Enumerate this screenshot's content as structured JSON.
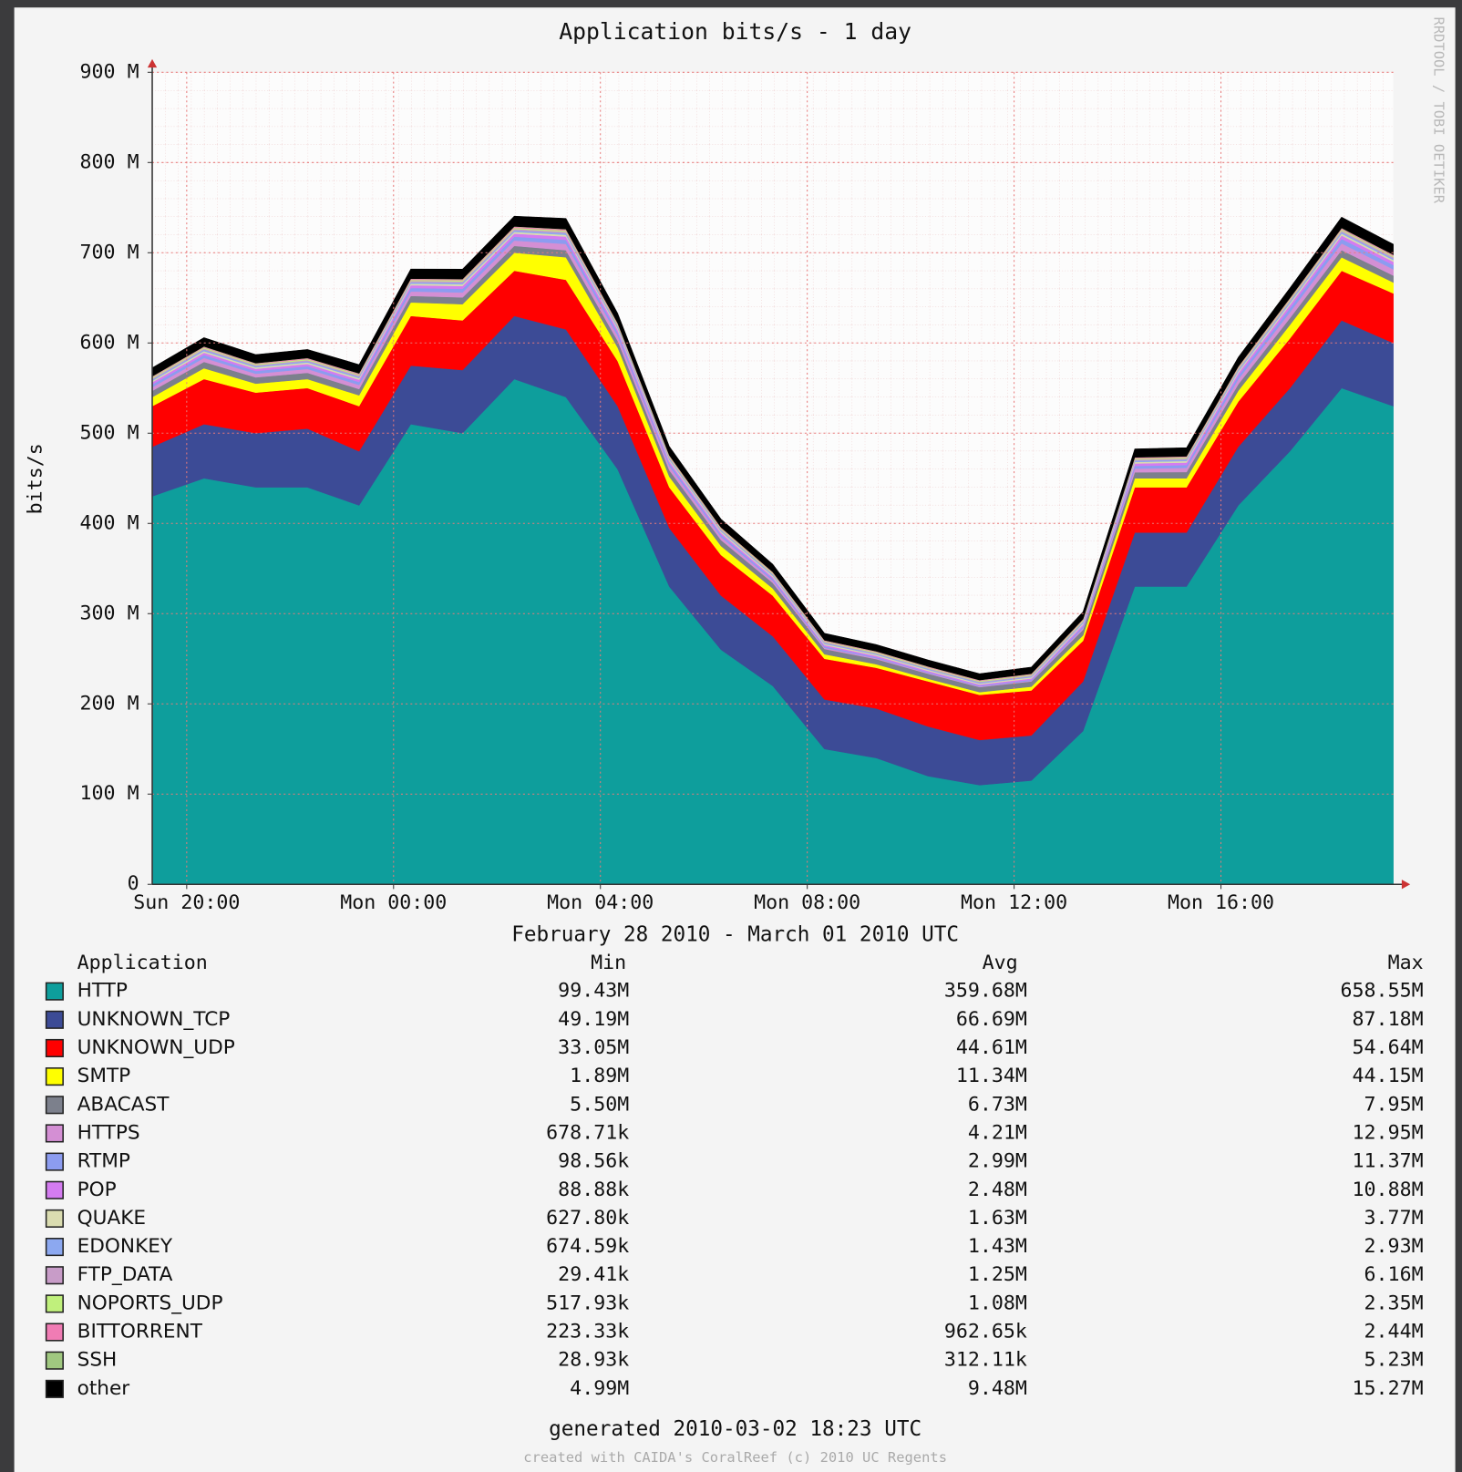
{
  "chart_data": {
    "type": "stacked_area",
    "title": "Application bits/s - 1 day",
    "y_label": "bits/s",
    "x_label": "February 28 2010 - March 01 2010 UTC",
    "side_label": "RRDTOOL / TOBI OETIKER",
    "footer": "generated 2010-03-02 18:23 UTC",
    "credit": "created with CAIDA's CoralReef (c) 2010 UC Regents",
    "legend_headers": [
      "Application",
      "Min",
      "Avg",
      "Max"
    ],
    "grid": true,
    "x": [
      "2010-02-28T19:20",
      "2010-02-28T20:20",
      "2010-02-28T21:20",
      "2010-02-28T22:20",
      "2010-02-28T23:20",
      "2010-03-01T00:20",
      "2010-03-01T01:20",
      "2010-03-01T02:20",
      "2010-03-01T03:20",
      "2010-03-01T04:20",
      "2010-03-01T05:20",
      "2010-03-01T06:20",
      "2010-03-01T07:20",
      "2010-03-01T08:20",
      "2010-03-01T09:20",
      "2010-03-01T10:20",
      "2010-03-01T11:20",
      "2010-03-01T12:20",
      "2010-03-01T13:20",
      "2010-03-01T14:20",
      "2010-03-01T15:20",
      "2010-03-01T16:20",
      "2010-03-01T17:20",
      "2010-03-01T18:20",
      "2010-03-01T19:20"
    ],
    "xlim": [
      "2010-02-28T19:20",
      "2010-03-01T19:20"
    ],
    "xticks": [
      {
        "value": "2010-02-28T20:00",
        "label": "Sun 20:00"
      },
      {
        "value": "2010-03-01T00:00",
        "label": "Mon 00:00"
      },
      {
        "value": "2010-03-01T04:00",
        "label": "Mon 04:00"
      },
      {
        "value": "2010-03-01T08:00",
        "label": "Mon 08:00"
      },
      {
        "value": "2010-03-01T12:00",
        "label": "Mon 12:00"
      },
      {
        "value": "2010-03-01T16:00",
        "label": "Mon 16:00"
      }
    ],
    "ylim": [
      0,
      900000000
    ],
    "yticks": [
      0,
      {
        "value": 100000000,
        "label": "100 M"
      },
      {
        "value": 200000000,
        "label": "200 M"
      },
      {
        "value": 300000000,
        "label": "300 M"
      },
      {
        "value": 400000000,
        "label": "400 M"
      },
      {
        "value": 500000000,
        "label": "500 M"
      },
      {
        "value": 600000000,
        "label": "600 M"
      },
      {
        "value": 700000000,
        "label": "700 M"
      },
      {
        "value": 800000000,
        "label": "800 M"
      },
      {
        "value": 900000000,
        "label": "900 M"
      }
    ],
    "series": [
      {
        "name": "HTTP",
        "color": "#0e9e9c",
        "stats": [
          "99.43M",
          "359.68M",
          "658.55M"
        ],
        "values": [
          430000000.0,
          450000000.0,
          440000000.0,
          440000000.0,
          420000000.0,
          510000000.0,
          500000000.0,
          560000000.0,
          540000000.0,
          460000000.0,
          330000000.0,
          260000000.0,
          220000000.0,
          150000000.0,
          140000000.0,
          120000000.0,
          110000000.0,
          115000000.0,
          170000000.0,
          330000000.0,
          330000000.0,
          420000000.0,
          480000000.0,
          550000000.0,
          530000000.0
        ]
      },
      {
        "name": "UNKNOWN_TCP",
        "color": "#3c4b96",
        "stats": [
          "49.19M",
          "66.69M",
          "87.18M"
        ],
        "values": [
          55000000.0,
          60000000.0,
          60000000.0,
          65000000.0,
          60000000.0,
          65000000.0,
          70000000.0,
          70000000.0,
          75000000.0,
          70000000.0,
          65000000.0,
          60000000.0,
          55000000.0,
          55000000.0,
          55000000.0,
          55000000.0,
          50000000.0,
          50000000.0,
          55000000.0,
          60000000.0,
          60000000.0,
          65000000.0,
          70000000.0,
          75000000.0,
          70000000.0
        ]
      },
      {
        "name": "UNKNOWN_UDP",
        "color": "#ff0000",
        "stats": [
          "33.05M",
          "44.61M",
          "54.64M"
        ],
        "values": [
          45000000.0,
          50000000.0,
          45000000.0,
          45000000.0,
          50000000.0,
          55000000.0,
          55000000.0,
          50000000.0,
          55000000.0,
          50000000.0,
          45000000.0,
          45000000.0,
          45000000.0,
          45000000.0,
          45000000.0,
          50000000.0,
          50000000.0,
          50000000.0,
          45000000.0,
          50000000.0,
          50000000.0,
          50000000.0,
          55000000.0,
          55000000.0,
          55000000.0
        ]
      },
      {
        "name": "SMTP",
        "color": "#ffff00",
        "stats": [
          "1.89M",
          "11.34M",
          "44.15M"
        ],
        "values": [
          10000000.0,
          12000000.0,
          10000000.0,
          10000000.0,
          12000000.0,
          15000000.0,
          18000000.0,
          20000000.0,
          25000000.0,
          15000000.0,
          12000000.0,
          10000000.0,
          8000000.0,
          5000000.0,
          4000000.0,
          3000000.0,
          3000000.0,
          4000000.0,
          6000000.0,
          10000000.0,
          10000000.0,
          12000000.0,
          15000000.0,
          15000000.0,
          12000000.0
        ]
      },
      {
        "name": "ABACAST",
        "color": "#7c808c",
        "stats": [
          "5.50M",
          "6.73M",
          "7.95M"
        ],
        "values": [
          7000000.0,
          7000000.0,
          6800000.0,
          6900000.0,
          7000000.0,
          7200000.0,
          7500000.0,
          7600000.0,
          7800000.0,
          7400000.0,
          7000000.0,
          6600000.0,
          6200000.0,
          5800000.0,
          5600000.0,
          5500000.0,
          5600000.0,
          5800000.0,
          6200000.0,
          6800000.0,
          7000000.0,
          7300000.0,
          7600000.0,
          7900000.0,
          7700000.0
        ]
      },
      {
        "name": "HTTPS",
        "color": "#d48fd4",
        "stats": [
          "678.71k",
          "4.21M",
          "12.95M"
        ],
        "values": [
          4000000.0,
          4500000.0,
          4200000.0,
          4300000.0,
          4500000.0,
          5000000.0,
          5500000.0,
          6000000.0,
          7000000.0,
          5500000.0,
          4500000.0,
          3500000.0,
          2500000.0,
          1500000.0,
          1000000.0,
          800000.0,
          700000.0,
          900000.0,
          2000000.0,
          4000000.0,
          4500000.0,
          5500000.0,
          6500000.0,
          7500000.0,
          7000000.0
        ]
      },
      {
        "name": "RTMP",
        "color": "#8c9cf0",
        "stats": [
          "98.56k",
          "2.99M",
          "11.37M"
        ],
        "values": [
          3000000.0,
          3200000.0,
          3000000.0,
          3100000.0,
          3300000.0,
          3800000.0,
          4000000.0,
          4200000.0,
          4500000.0,
          3800000.0,
          3000000.0,
          2500000.0,
          2000000.0,
          1500000.0,
          1200000.0,
          1000000.0,
          900000.0,
          1000000.0,
          1800000.0,
          3000000.0,
          3200000.0,
          3800000.0,
          4500000.0,
          5000000.0,
          4800000.0
        ]
      },
      {
        "name": "POP",
        "color": "#d47cf0",
        "stats": [
          "88.88k",
          "2.48M",
          "10.88M"
        ],
        "values": [
          2500000.0,
          2600000.0,
          2400000.0,
          2500000.0,
          2600000.0,
          3000000.0,
          3200000.0,
          3400000.0,
          3600000.0,
          3000000.0,
          2500000.0,
          2000000.0,
          1800000.0,
          1500000.0,
          1400000.0,
          1300000.0,
          1300000.0,
          1500000.0,
          2000000.0,
          2600000.0,
          2800000.0,
          3000000.0,
          3500000.0,
          3800000.0,
          3600000.0
        ]
      },
      {
        "name": "QUAKE",
        "color": "#dadcb0",
        "stats": [
          "627.80k",
          "1.63M",
          "3.77M"
        ],
        "values": [
          1600000.0,
          1700000.0,
          1600000.0,
          1600000.0,
          1700000.0,
          1800000.0,
          1900000.0,
          1900000.0,
          2000000.0,
          1800000.0,
          1600000.0,
          1500000.0,
          1400000.0,
          1300000.0,
          1300000.0,
          1200000.0,
          1200000.0,
          1300000.0,
          1500000.0,
          1700000.0,
          1700000.0,
          1800000.0,
          1900000.0,
          2000000.0,
          1900000.0
        ]
      },
      {
        "name": "EDONKEY",
        "color": "#8ca8f0",
        "stats": [
          "674.59k",
          "1.43M",
          "2.93M"
        ],
        "values": [
          1400000.0,
          1500000.0,
          1400000.0,
          1400000.0,
          1500000.0,
          1600000.0,
          1600000.0,
          1700000.0,
          1800000.0,
          1600000.0,
          1400000.0,
          1300000.0,
          1200000.0,
          1100000.0,
          1000000.0,
          1000000.0,
          1000000.0,
          1100000.0,
          1300000.0,
          1500000.0,
          1500000.0,
          1600000.0,
          1700000.0,
          1800000.0,
          1700000.0
        ]
      },
      {
        "name": "FTP_DATA",
        "color": "#c89cc8",
        "stats": [
          "29.41k",
          "1.25M",
          "6.16M"
        ],
        "values": [
          1200000.0,
          1300000.0,
          1100000.0,
          1200000.0,
          1300000.0,
          1400000.0,
          1500000.0,
          1500000.0,
          1600000.0,
          1400000.0,
          1200000.0,
          1100000.0,
          1000000.0,
          900000.0,
          900000.0,
          800000.0,
          800000.0,
          900000.0,
          1100000.0,
          1300000.0,
          1300000.0,
          1400000.0,
          1500000.0,
          1600000.0,
          1500000.0
        ]
      },
      {
        "name": "NOPORTS_UDP",
        "color": "#c0f07c",
        "stats": [
          "517.93k",
          "1.08M",
          "2.35M"
        ],
        "values": [
          1100000.0,
          1100000.0,
          1000000.0,
          1100000.0,
          1100000.0,
          1200000.0,
          1200000.0,
          1300000.0,
          1300000.0,
          1200000.0,
          1100000.0,
          1000000.0,
          1000000.0,
          900000.0,
          900000.0,
          900000.0,
          900000.0,
          900000.0,
          1000000.0,
          1100000.0,
          1100000.0,
          1200000.0,
          1200000.0,
          1300000.0,
          1300000.0
        ]
      },
      {
        "name": "BITTORRENT",
        "color": "#f07cb4",
        "stats": [
          "223.33k",
          "962.65k",
          "2.44M"
        ],
        "values": [
          1000000.0,
          1000000.0,
          900000.0,
          1000000.0,
          1000000.0,
          1100000.0,
          1100000.0,
          1200000.0,
          1200000.0,
          1100000.0,
          1000000.0,
          900000.0,
          900000.0,
          800000.0,
          800000.0,
          800000.0,
          800000.0,
          800000.0,
          900000.0,
          1000000.0,
          1000000.0,
          1000000.0,
          1100000.0,
          1200000.0,
          1100000.0
        ]
      },
      {
        "name": "SSH",
        "color": "#a0c880",
        "stats": [
          "28.93k",
          "312.11k",
          "5.23M"
        ],
        "values": [
          300000.0,
          300000.0,
          300000.0,
          300000.0,
          300000.0,
          350000.0,
          350000.0,
          350000.0,
          350000.0,
          300000.0,
          300000.0,
          300000.0,
          300000.0,
          250000.0,
          250000.0,
          250000.0,
          250000.0,
          250000.0,
          300000.0,
          300000.0,
          300000.0,
          300000.0,
          350000.0,
          350000.0,
          350000.0
        ]
      },
      {
        "name": "other",
        "color": "#000000",
        "stats": [
          "4.99M",
          "9.48M",
          "15.27M"
        ],
        "values": [
          9500000.0,
          9800000.0,
          9400000.0,
          9500000.0,
          9800000.0,
          10500000.0,
          11000000.0,
          11500000.0,
          12000000.0,
          10800000.0,
          9800000.0,
          9000000.0,
          8500000.0,
          7800000.0,
          7500000.0,
          7200000.0,
          7000000.0,
          7300000.0,
          8000000.0,
          9300000.0,
          9500000.0,
          10200000.0,
          11000000.0,
          12000000.0,
          11500000.0
        ]
      }
    ]
  }
}
